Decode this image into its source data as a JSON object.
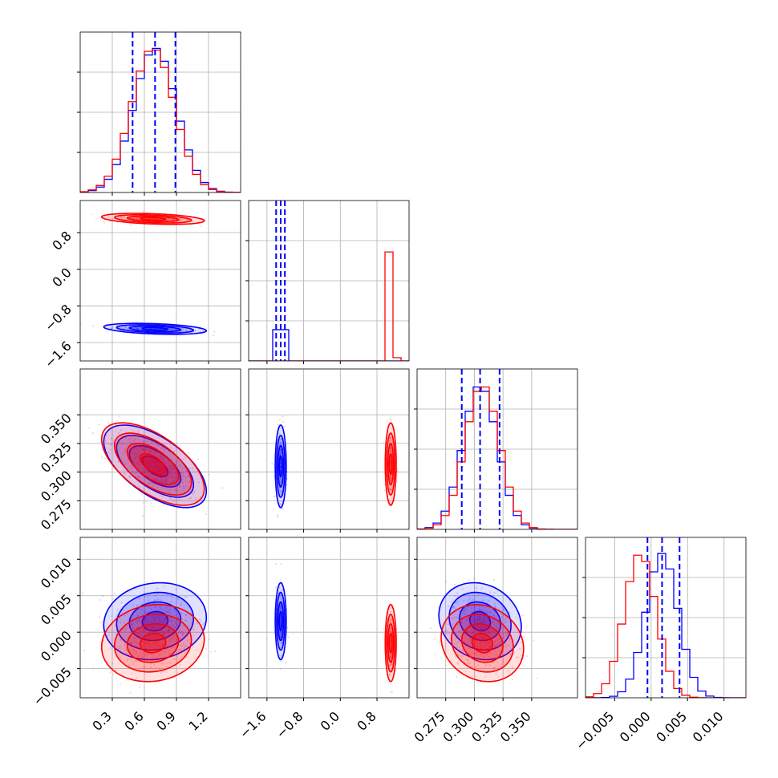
{
  "chart_data": {
    "type": "corner",
    "n_params": 4,
    "grid": true,
    "colors": {
      "series_a": "#0000ff",
      "series_b": "#ff0000",
      "quantile_line": "#0000ff"
    },
    "series": [
      {
        "color": "#0000ff",
        "means": [
          0.7,
          -1.3,
          0.305,
          0.0015
        ],
        "sds": [
          0.2,
          0.05,
          0.015,
          0.0022
        ]
      },
      {
        "color": "#ff0000",
        "means": [
          0.68,
          1.1,
          0.307,
          -0.0015
        ],
        "sds": [
          0.2,
          0.05,
          0.015,
          0.0022
        ]
      }
    ],
    "correlations": {
      "1-0": -0.35,
      "2-0": -0.6,
      "2-1": 0.0,
      "3-0": 0.1,
      "3-1": 0.0,
      "3-2": -0.15
    },
    "quantiles": [
      [
        0.49,
        0.7,
        0.89
      ],
      [
        -1.4,
        -1.3,
        -1.21
      ],
      [
        0.289,
        0.305,
        0.322
      ],
      [
        -0.0005,
        0.0015,
        0.0039
      ]
    ],
    "axes": [
      {
        "range": [
          0.0,
          1.5
        ],
        "ticks": [
          0.3,
          0.6,
          0.9,
          1.2
        ],
        "tick_labels": [
          "0.3",
          "0.6",
          "0.9",
          "1.2"
        ]
      },
      {
        "range": [
          -2.0,
          1.5
        ],
        "ticks": [
          -1.6,
          -0.8,
          0.0,
          0.8
        ],
        "tick_labels": [
          "−1.6",
          "−0.8",
          "0.0",
          "0.8"
        ]
      },
      {
        "range": [
          0.25,
          0.39
        ],
        "ticks": [
          0.275,
          0.3,
          0.325,
          0.35
        ],
        "tick_labels": [
          "0.275",
          "0.300",
          "0.325",
          "0.350"
        ]
      },
      {
        "range": [
          -0.009,
          0.013
        ],
        "ticks": [
          -0.005,
          0.0,
          0.005,
          0.01
        ],
        "tick_labels": [
          "−0.005",
          "0.000",
          "0.005",
          "0.010"
        ]
      }
    ]
  }
}
